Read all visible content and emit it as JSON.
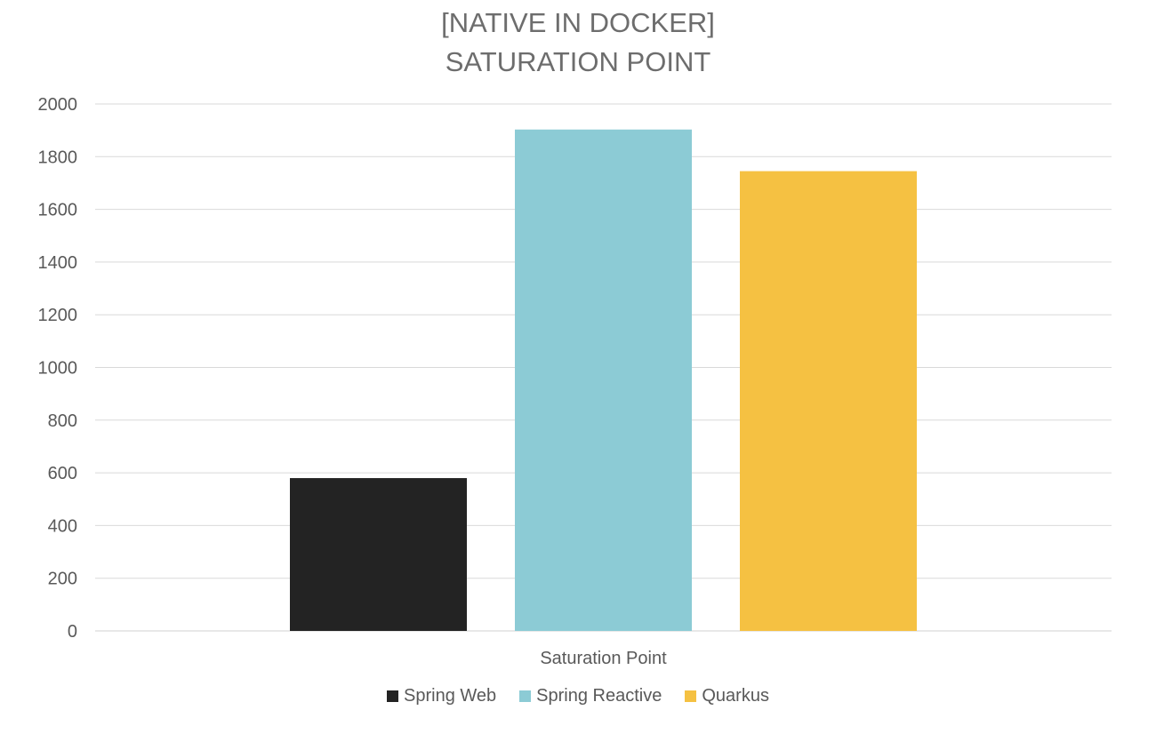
{
  "chart_data": {
    "type": "bar",
    "title_lines": [
      "[NATIVE IN DOCKER]",
      "SATURATION POINT"
    ],
    "categories": [
      "Saturation Point"
    ],
    "series": [
      {
        "name": "Spring Web",
        "values": [
          580
        ],
        "color": "#232323"
      },
      {
        "name": "Spring Reactive",
        "values": [
          1903
        ],
        "color": "#8ccbd5"
      },
      {
        "name": "Quarkus",
        "values": [
          1745
        ],
        "color": "#f5c142"
      }
    ],
    "ylim": [
      0,
      2000
    ],
    "yticks": [
      0,
      200,
      400,
      600,
      800,
      1000,
      1200,
      1400,
      1600,
      1800,
      2000
    ],
    "grid": true,
    "legend_position": "bottom"
  }
}
